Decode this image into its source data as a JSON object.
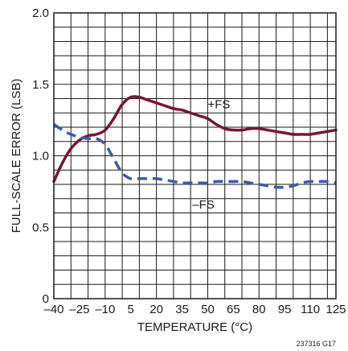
{
  "chart_data": {
    "type": "line",
    "title": "",
    "xlabel": "TEMPERATURE (°C)",
    "ylabel": "FULL-SCALE ERROR (LSB)",
    "xlim": [
      -40,
      125
    ],
    "ylim": [
      0,
      2.0
    ],
    "x_ticks": [
      -40,
      -25,
      -10,
      5,
      20,
      35,
      50,
      65,
      80,
      95,
      110,
      125
    ],
    "x_tick_labels": [
      "–40",
      "–25",
      "–10",
      "5",
      "20",
      "35",
      "50",
      "65",
      "80",
      "95",
      "110",
      "125"
    ],
    "y_ticks": [
      0,
      0.5,
      1.0,
      1.5,
      2.0
    ],
    "y_tick_labels": [
      "0",
      "0.5",
      "1.0",
      "1.5",
      "2.0"
    ],
    "grid": true,
    "figure_id": "237316 G17",
    "colors": {
      "plus_fs": "#7b1530",
      "minus_fs": "#3d5aa8",
      "grid": "#1a1a1a"
    },
    "series": [
      {
        "name": "+FS",
        "style": "solid",
        "x": [
          -40,
          -35,
          -30,
          -25,
          -20,
          -15,
          -10,
          -5,
          0,
          5,
          10,
          15,
          20,
          25,
          30,
          35,
          40,
          45,
          50,
          55,
          60,
          65,
          70,
          75,
          80,
          85,
          90,
          95,
          100,
          105,
          110,
          115,
          120,
          125
        ],
        "y": [
          0.82,
          0.95,
          1.05,
          1.11,
          1.14,
          1.15,
          1.18,
          1.26,
          1.36,
          1.41,
          1.41,
          1.39,
          1.37,
          1.35,
          1.33,
          1.32,
          1.3,
          1.28,
          1.26,
          1.22,
          1.19,
          1.18,
          1.18,
          1.19,
          1.19,
          1.18,
          1.17,
          1.16,
          1.15,
          1.15,
          1.15,
          1.16,
          1.17,
          1.18
        ]
      },
      {
        "name": "–FS",
        "style": "dashed",
        "x": [
          -40,
          -35,
          -30,
          -25,
          -20,
          -15,
          -10,
          -5,
          0,
          5,
          10,
          15,
          20,
          25,
          30,
          35,
          40,
          45,
          50,
          55,
          60,
          65,
          70,
          75,
          80,
          85,
          90,
          95,
          100,
          105,
          110,
          115,
          120,
          125
        ],
        "y": [
          1.22,
          1.18,
          1.15,
          1.13,
          1.12,
          1.12,
          1.08,
          0.98,
          0.88,
          0.84,
          0.84,
          0.84,
          0.84,
          0.83,
          0.82,
          0.81,
          0.81,
          0.81,
          0.81,
          0.82,
          0.82,
          0.82,
          0.82,
          0.81,
          0.8,
          0.79,
          0.78,
          0.78,
          0.79,
          0.81,
          0.82,
          0.82,
          0.82,
          0.81
        ]
      }
    ],
    "annotations": [
      {
        "text": "+FS",
        "series": "+FS",
        "x": 50,
        "y": 1.36
      },
      {
        "text": "–FS",
        "series": "–FS",
        "x": 41,
        "y": 0.66
      }
    ]
  }
}
